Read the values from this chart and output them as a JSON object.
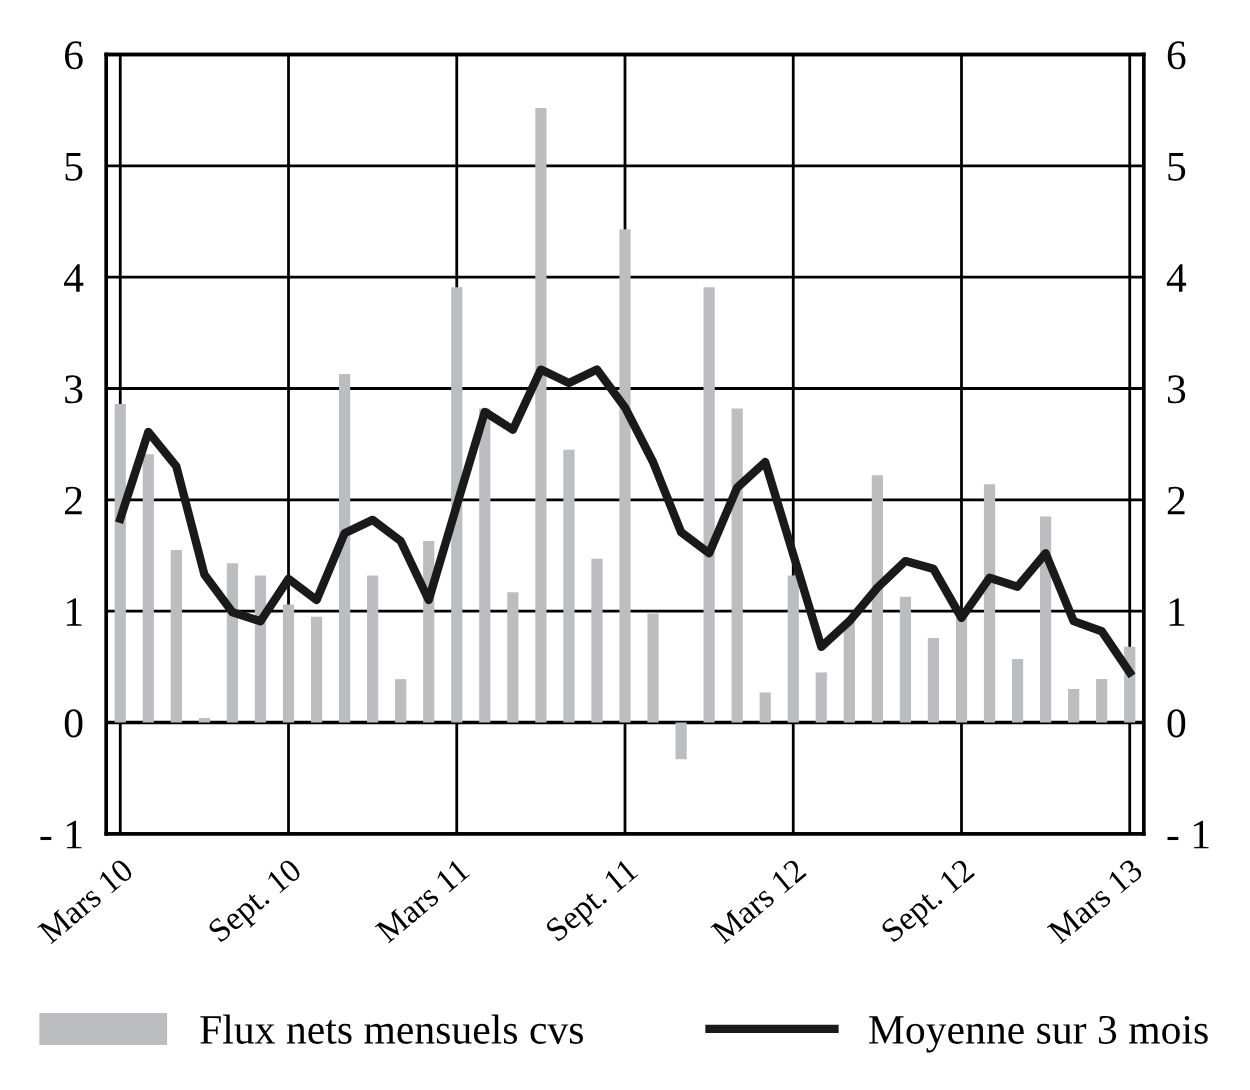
{
  "chart_data": {
    "type": "bar",
    "categories": [
      "Mars 10",
      null,
      null,
      null,
      null,
      null,
      "Sept. 10",
      null,
      null,
      null,
      null,
      null,
      "Mars 11",
      null,
      null,
      null,
      null,
      null,
      "Sept. 11",
      null,
      null,
      null,
      null,
      null,
      "Mars 12",
      null,
      null,
      null,
      null,
      null,
      "Sept. 12",
      null,
      null,
      null,
      null,
      null,
      "Mars 13"
    ],
    "series": [
      {
        "name": "Flux nets mensuels cvs",
        "color": "#bcbdc1",
        "values": [
          2.86,
          2.41,
          1.55,
          0.04,
          1.43,
          1.32,
          1.06,
          0.95,
          3.13,
          1.32,
          0.39,
          1.63,
          3.91,
          2.82,
          1.17,
          5.52,
          2.45,
          1.47,
          4.43,
          0.98,
          -0.33,
          3.91,
          2.82,
          0.27,
          1.32,
          0.45,
          0.91,
          2.22,
          1.13,
          0.76,
          0.94,
          2.14,
          0.57,
          1.85,
          0.3,
          0.39,
          0.68
        ]
      },
      {
        "name": "Moyenne sur 3 mois",
        "type": "line",
        "color": "#1a1a1a",
        "values": [
          1.83,
          2.61,
          2.3,
          1.33,
          0.99,
          0.91,
          1.29,
          1.1,
          1.7,
          1.82,
          1.63,
          1.1,
          1.95,
          2.79,
          2.63,
          3.17,
          3.05,
          3.17,
          2.83,
          2.34,
          1.71,
          1.52,
          2.11,
          2.34,
          1.51,
          0.68,
          0.91,
          1.21,
          1.45,
          1.38,
          0.94,
          1.3,
          1.22,
          1.52,
          0.91,
          0.82,
          0.45
        ]
      }
    ],
    "ylim": [
      -1,
      6
    ],
    "yticks": [
      {
        "value": -1,
        "label": "- 1"
      },
      0,
      1,
      2,
      3,
      4,
      5,
      6
    ],
    "y2lim": [
      -1,
      6
    ],
    "y2ticks": [
      {
        "value": -1,
        "label": "- 1"
      },
      0,
      1,
      2,
      3,
      4,
      5,
      6
    ],
    "grid": true,
    "legend": "bottom",
    "line_style": "solid",
    "marker": "none"
  }
}
